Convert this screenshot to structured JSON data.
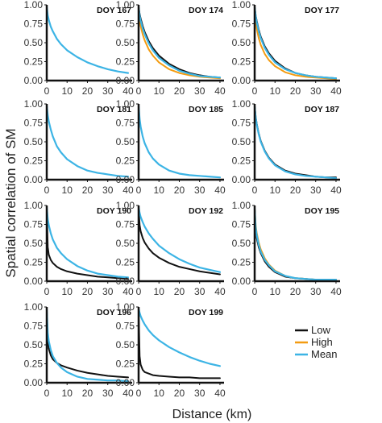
{
  "chart_data": {
    "type": "line",
    "ylabel": "Spatial correlation of SM",
    "xlabel": "Distance (km)",
    "xlim": [
      0,
      42
    ],
    "ylim": [
      0,
      1
    ],
    "xticks": [
      "0",
      "10",
      "20",
      "30",
      "40"
    ],
    "yticks": [
      "0.00",
      "0.25",
      "0.50",
      "0.75",
      "1.00"
    ],
    "legend": {
      "placement": "right",
      "entries": [
        {
          "name": "Low",
          "color": "#111111"
        },
        {
          "name": "High",
          "color": "#f39c12"
        },
        {
          "name": "Mean",
          "color": "#3cb4e5"
        }
      ]
    },
    "x": [
      0,
      0.5,
      1,
      2,
      3,
      5,
      7,
      10,
      15,
      20,
      25,
      30,
      35,
      40
    ],
    "panels": [
      {
        "title": "DOY 167",
        "series": [
          {
            "name": "Mean",
            "values": [
              0.98,
              0.86,
              0.8,
              0.71,
              0.65,
              0.55,
              0.48,
              0.4,
              0.31,
              0.24,
              0.19,
              0.15,
              0.12,
              0.1
            ]
          }
        ]
      },
      {
        "title": "DOY 174",
        "series": [
          {
            "name": "Low",
            "values": [
              0.97,
              0.88,
              0.82,
              0.72,
              0.64,
              0.52,
              0.43,
              0.33,
              0.22,
              0.15,
              0.1,
              0.07,
              0.05,
              0.04
            ]
          },
          {
            "name": "High",
            "values": [
              0.95,
              0.8,
              0.72,
              0.61,
              0.53,
              0.41,
              0.33,
              0.24,
              0.15,
              0.1,
              0.07,
              0.05,
              0.04,
              0.03
            ]
          },
          {
            "name": "Mean",
            "values": [
              0.97,
              0.86,
              0.79,
              0.69,
              0.61,
              0.49,
              0.4,
              0.3,
              0.2,
              0.13,
              0.09,
              0.06,
              0.05,
              0.04
            ]
          }
        ]
      },
      {
        "title": "DOY 177",
        "series": [
          {
            "name": "Low",
            "values": [
              0.97,
              0.86,
              0.79,
              0.67,
              0.58,
              0.45,
              0.36,
              0.26,
              0.16,
              0.1,
              0.07,
              0.05,
              0.04,
              0.03
            ]
          },
          {
            "name": "High",
            "values": [
              0.94,
              0.78,
              0.69,
              0.56,
              0.47,
              0.35,
              0.27,
              0.19,
              0.11,
              0.07,
              0.05,
              0.04,
              0.03,
              0.02
            ]
          },
          {
            "name": "Mean",
            "values": [
              0.97,
              0.85,
              0.77,
              0.65,
              0.56,
              0.43,
              0.34,
              0.24,
              0.15,
              0.1,
              0.07,
              0.05,
              0.04,
              0.03
            ]
          }
        ]
      },
      {
        "title": "DOY 181",
        "series": [
          {
            "name": "Mean",
            "values": [
              0.98,
              0.85,
              0.77,
              0.66,
              0.57,
              0.44,
              0.36,
              0.27,
              0.18,
              0.12,
              0.09,
              0.07,
              0.05,
              0.04
            ]
          }
        ]
      },
      {
        "title": "DOY 185",
        "series": [
          {
            "name": "Mean",
            "values": [
              0.98,
              0.8,
              0.7,
              0.57,
              0.48,
              0.36,
              0.28,
              0.2,
              0.12,
              0.08,
              0.06,
              0.05,
              0.04,
              0.03
            ]
          }
        ]
      },
      {
        "title": "DOY 187",
        "series": [
          {
            "name": "Low",
            "values": [
              0.97,
              0.83,
              0.74,
              0.61,
              0.51,
              0.38,
              0.29,
              0.2,
              0.12,
              0.08,
              0.06,
              0.04,
              0.03,
              0.03
            ]
          },
          {
            "name": "Mean",
            "values": [
              0.97,
              0.82,
              0.73,
              0.6,
              0.5,
              0.37,
              0.28,
              0.19,
              0.11,
              0.07,
              0.05,
              0.04,
              0.03,
              0.02
            ]
          }
        ]
      },
      {
        "title": "DOY 190",
        "series": [
          {
            "name": "Low",
            "values": [
              0.95,
              0.45,
              0.35,
              0.28,
              0.24,
              0.19,
              0.16,
              0.13,
              0.1,
              0.08,
              0.06,
              0.05,
              0.04,
              0.03
            ]
          },
          {
            "name": "Mean",
            "values": [
              0.98,
              0.82,
              0.74,
              0.63,
              0.55,
              0.44,
              0.37,
              0.29,
              0.2,
              0.14,
              0.1,
              0.08,
              0.06,
              0.05
            ]
          }
        ]
      },
      {
        "title": "DOY 192",
        "series": [
          {
            "name": "Low",
            "values": [
              0.97,
              0.74,
              0.66,
              0.57,
              0.51,
              0.43,
              0.37,
              0.31,
              0.24,
              0.19,
              0.16,
              0.13,
              0.11,
              0.09
            ]
          },
          {
            "name": "Mean",
            "values": [
              0.98,
              0.9,
              0.85,
              0.78,
              0.72,
              0.63,
              0.56,
              0.47,
              0.37,
              0.29,
              0.23,
              0.18,
              0.15,
              0.12
            ]
          }
        ]
      },
      {
        "title": "DOY 195",
        "series": [
          {
            "name": "Low",
            "values": [
              0.95,
              0.68,
              0.57,
              0.45,
              0.37,
              0.26,
              0.19,
              0.12,
              0.06,
              0.04,
              0.03,
              0.02,
              0.02,
              0.02
            ]
          },
          {
            "name": "High",
            "values": [
              0.96,
              0.74,
              0.64,
              0.51,
              0.42,
              0.3,
              0.22,
              0.14,
              0.07,
              0.04,
              0.03,
              0.02,
              0.02,
              0.02
            ]
          },
          {
            "name": "Mean",
            "values": [
              0.96,
              0.71,
              0.61,
              0.48,
              0.39,
              0.28,
              0.21,
              0.13,
              0.07,
              0.04,
              0.03,
              0.02,
              0.02,
              0.02
            ]
          }
        ]
      },
      {
        "title": "DOY 196",
        "series": [
          {
            "name": "Low",
            "values": [
              0.95,
              0.55,
              0.45,
              0.36,
              0.31,
              0.26,
              0.23,
              0.2,
              0.16,
              0.13,
              0.11,
              0.09,
              0.08,
              0.07
            ]
          },
          {
            "name": "Mean",
            "values": [
              0.97,
              0.66,
              0.55,
              0.43,
              0.35,
              0.26,
              0.2,
              0.14,
              0.08,
              0.05,
              0.04,
              0.03,
              0.03,
              0.02
            ]
          }
        ]
      },
      {
        "title": "DOY 199",
        "series": [
          {
            "name": "Low",
            "values": [
              0.95,
              0.35,
              0.24,
              0.17,
              0.14,
              0.12,
              0.1,
              0.09,
              0.08,
              0.07,
              0.07,
              0.06,
              0.06,
              0.06
            ]
          },
          {
            "name": "Mean",
            "values": [
              0.98,
              0.92,
              0.88,
              0.82,
              0.77,
              0.69,
              0.63,
              0.56,
              0.47,
              0.4,
              0.34,
              0.29,
              0.25,
              0.22
            ]
          }
        ]
      }
    ]
  }
}
